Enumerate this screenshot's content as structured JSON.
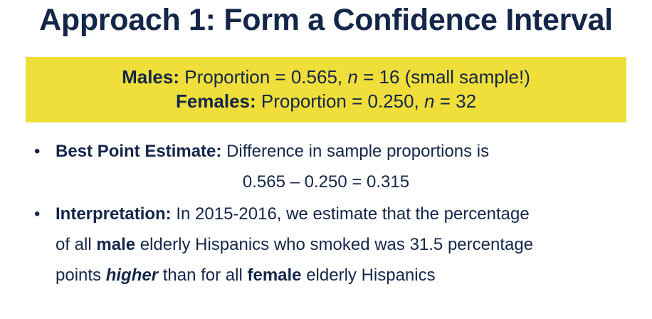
{
  "title": "Approach 1: Form a Confidence Interval",
  "summary_box": {
    "males": {
      "label": "Males:",
      "prefix": "Proportion = 0.565,",
      "n_symbol": "n",
      "suffix": "= 16 (small sample!)"
    },
    "females": {
      "label": "Females:",
      "prefix": "Proportion = 0.250,",
      "n_symbol": "n",
      "suffix": "= 32"
    },
    "background_color": "#f0de3a"
  },
  "bullets": {
    "point_estimate": {
      "bullet": "•",
      "label": "Best Point Estimate:",
      "text": "Difference in sample proportions is",
      "formula": "0.565 – 0.250 = 0.315"
    },
    "interpretation": {
      "bullet": "•",
      "label": "Interpretation:",
      "line1_text": "In 2015-2016, we estimate that the percentage",
      "line2_pre": "of all",
      "line2_bold": "male",
      "line2_post": "elderly Hispanics who smoked was 31.5 percentage",
      "line3_pre": "points",
      "line3_bold_italic": "higher",
      "line3_mid": "than for all",
      "line3_bold": "female",
      "line3_post": "elderly Hispanics"
    }
  },
  "colors": {
    "text": "#14264a",
    "highlight": "#f0de3a"
  }
}
